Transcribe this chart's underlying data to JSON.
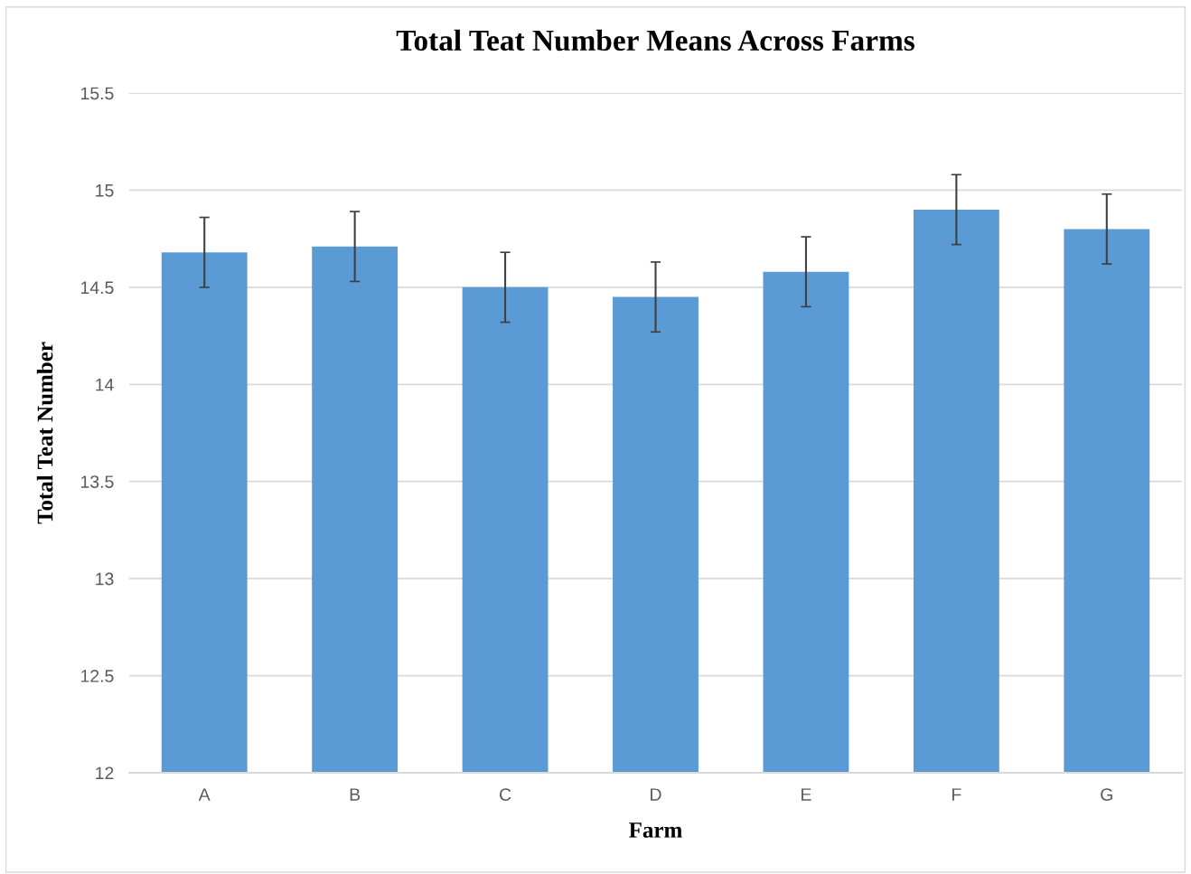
{
  "chart_data": {
    "type": "bar",
    "title": "Total Teat Number Means Across Farms",
    "xlabel": "Farm",
    "ylabel": "Total Teat Number",
    "categories": [
      "A",
      "B",
      "C",
      "D",
      "E",
      "F",
      "G"
    ],
    "values": [
      14.68,
      14.71,
      14.5,
      14.45,
      14.58,
      14.9,
      14.8
    ],
    "errors": [
      0.18,
      0.18,
      0.18,
      0.18,
      0.18,
      0.18,
      0.18
    ],
    "color": "#5b9bd5",
    "ylim": [
      12,
      15.5
    ],
    "yticks": [
      12,
      12.5,
      13,
      13.5,
      14,
      14.5,
      15,
      15.5
    ],
    "grid": "y"
  }
}
